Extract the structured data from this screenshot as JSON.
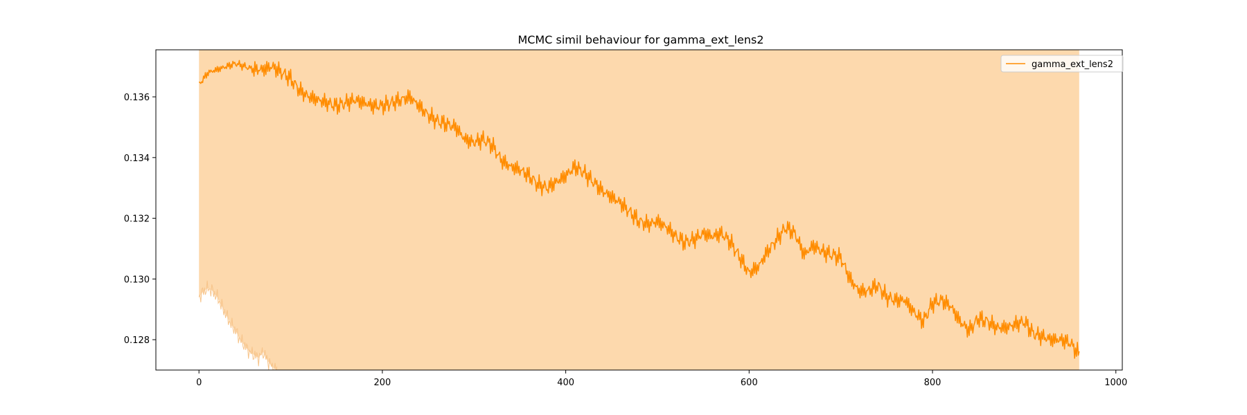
{
  "chart_data": {
    "type": "line",
    "title": "MCMC simil behaviour for gamma_ext_lens2",
    "xlabel": "",
    "ylabel": "",
    "xlim": [
      -47,
      1007
    ],
    "ylim": [
      0.127,
      0.13755
    ],
    "xticks": [
      0,
      200,
      400,
      600,
      800,
      1000
    ],
    "xtick_labels": [
      "0",
      "200",
      "400",
      "600",
      "800",
      "1000"
    ],
    "yticks": [
      0.128,
      0.13,
      0.132,
      0.134,
      0.136
    ],
    "ytick_labels": [
      "0.128",
      "0.130",
      "0.132",
      "0.134",
      "0.136"
    ],
    "grid": false,
    "legend_position": "top-right",
    "colors": {
      "line": "#ff8c00",
      "band": "#fdd9ad",
      "axes": "#000000"
    },
    "series": [
      {
        "name": "gamma_ext_lens2",
        "step": 10,
        "noise_amplitude": 0.00035,
        "x": [
          0,
          10,
          20,
          30,
          40,
          50,
          60,
          70,
          80,
          90,
          100,
          110,
          120,
          130,
          140,
          150,
          160,
          170,
          180,
          190,
          200,
          210,
          220,
          230,
          240,
          250,
          260,
          270,
          280,
          290,
          300,
          310,
          320,
          330,
          340,
          350,
          360,
          370,
          380,
          390,
          400,
          410,
          420,
          430,
          440,
          450,
          460,
          470,
          480,
          490,
          500,
          510,
          520,
          530,
          540,
          550,
          560,
          570,
          580,
          590,
          600,
          610,
          620,
          630,
          640,
          650,
          660,
          670,
          680,
          690,
          700,
          710,
          720,
          730,
          740,
          750,
          760,
          770,
          780,
          790,
          800,
          810,
          820,
          830,
          840,
          850,
          860,
          870,
          880,
          890,
          900,
          910,
          920,
          930,
          940,
          950,
          960
        ],
        "y": [
          0.1364,
          0.1368,
          0.1369,
          0.137,
          0.1371,
          0.137,
          0.1369,
          0.1369,
          0.137,
          0.1368,
          0.1366,
          0.1362,
          0.136,
          0.1359,
          0.1358,
          0.1357,
          0.1358,
          0.1359,
          0.1358,
          0.1357,
          0.1357,
          0.1358,
          0.1359,
          0.136,
          0.1357,
          0.1354,
          0.1352,
          0.1351,
          0.135,
          0.1346,
          0.1345,
          0.1346,
          0.1344,
          0.1339,
          0.1337,
          0.1336,
          0.1334,
          0.1331,
          0.133,
          0.1332,
          0.1334,
          0.1337,
          0.1335,
          0.1332,
          0.1329,
          0.1327,
          0.1325,
          0.1322,
          0.1319,
          0.1318,
          0.1319,
          0.1317,
          0.1314,
          0.1312,
          0.1313,
          0.1315,
          0.1314,
          0.1315,
          0.1312,
          0.1307,
          0.1302,
          0.1304,
          0.1309,
          0.1313,
          0.1317,
          0.1315,
          0.1308,
          0.1311,
          0.1309,
          0.1308,
          0.1307,
          0.13,
          0.1296,
          0.1296,
          0.1298,
          0.1294,
          0.1293,
          0.1293,
          0.1289,
          0.1286,
          0.1292,
          0.1293,
          0.1291,
          0.1286,
          0.1283,
          0.1287,
          0.1286,
          0.1284,
          0.1284,
          0.1285,
          0.1286,
          0.1282,
          0.1281,
          0.128,
          0.128,
          0.1279,
          0.1275
        ]
      }
    ],
    "band": {
      "label": "",
      "lower_x": [
        0,
        5,
        10,
        15,
        20,
        25,
        30,
        35,
        40,
        45,
        50,
        55,
        60,
        65,
        70,
        75,
        80,
        85
      ],
      "lower_y": [
        0.1294,
        0.1296,
        0.1297,
        0.1296,
        0.1294,
        0.1291,
        0.1288,
        0.1285,
        0.1283,
        0.128,
        0.1278,
        0.1276,
        0.1275,
        0.1274,
        0.1276,
        0.1273,
        0.1271,
        0.127
      ],
      "x_end": 960
    }
  }
}
